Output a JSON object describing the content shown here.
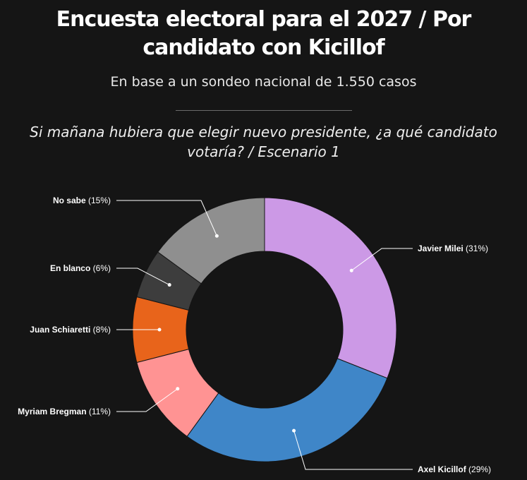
{
  "header": {
    "title": "Encuesta electoral para el 2027 / Por candidato con Kicillof",
    "subtitle": "En base a un sondeo nacional de 1.550 casos",
    "question": "Si mañana hubiera que elegir nuevo presidente, ¿a qué candidato votaría? / Escenario 1"
  },
  "chart_data": {
    "type": "pie",
    "variant": "donut",
    "unit": "%",
    "legend": "none",
    "slices": [
      {
        "label": "Javier Milei",
        "value": 31,
        "value_label": "(31%)",
        "color": "#cc99e6"
      },
      {
        "label": "Axel Kicillof",
        "value": 29,
        "value_label": "(29%)",
        "color": "#3f86c8"
      },
      {
        "label": "Myriam Bregman",
        "value": 11,
        "value_label": "(11%)",
        "color": "#ff9393"
      },
      {
        "label": "Juan Schiaretti",
        "value": 8,
        "value_label": "(8%)",
        "color": "#e8641b"
      },
      {
        "label": "En blanco",
        "value": 6,
        "value_label": "(6%)",
        "color": "#3d3d3d"
      },
      {
        "label": "No sabe",
        "value": 15,
        "value_label": "(15%)",
        "color": "#8f8f8f"
      }
    ]
  }
}
